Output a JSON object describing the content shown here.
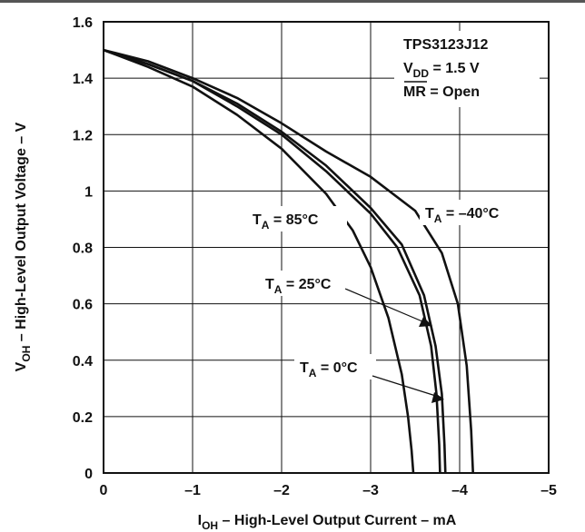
{
  "chart_data": {
    "type": "line",
    "title": "",
    "xlabel": {
      "main": "I",
      "sub": "OH",
      "rest": " – High-Level Output Current – mA"
    },
    "ylabel": {
      "main": "V",
      "sub": "OH",
      "rest": " – High-Level Output Voltage – V"
    },
    "xlim": [
      0,
      -5
    ],
    "ylim": [
      0,
      1.6
    ],
    "grid": true,
    "x_ticks": [
      0,
      -1,
      -2,
      -3,
      -4,
      -5
    ],
    "x_tick_labels": [
      "0",
      "–1",
      "–2",
      "–3",
      "–4",
      "–5"
    ],
    "y_ticks": [
      0,
      0.2,
      0.4,
      0.6,
      0.8,
      1,
      1.2,
      1.4,
      1.6
    ],
    "y_tick_labels": [
      "0",
      "0.2",
      "0.4",
      "0.6",
      "0.8",
      "1",
      "1.2",
      "1.4",
      "1.6"
    ],
    "info_box": {
      "device": "TPS3123J12",
      "vdd_main": "V",
      "vdd_sub": "DD",
      "vdd_rest": " = 1.5 V",
      "mr_main": "MR",
      "mr_rest": " = Open"
    },
    "series": [
      {
        "name": "T_A = 85°C",
        "label_main": "T",
        "label_sub": "A",
        "label_rest": " = 85°C",
        "x": [
          0,
          -0.5,
          -1,
          -1.5,
          -2,
          -2.5,
          -2.8,
          -3.0,
          -3.2,
          -3.35,
          -3.42,
          -3.46,
          -3.48
        ],
        "y": [
          1.5,
          1.44,
          1.37,
          1.27,
          1.15,
          0.99,
          0.86,
          0.73,
          0.55,
          0.35,
          0.2,
          0.08,
          0
        ]
      },
      {
        "name": "T_A = 0°C",
        "label_main": "T",
        "label_sub": "A",
        "label_rest": " = 0°C",
        "x": [
          0,
          -0.5,
          -1,
          -1.5,
          -2,
          -2.5,
          -3.0,
          -3.3,
          -3.55,
          -3.68,
          -3.74,
          -3.77,
          -3.78
        ],
        "y": [
          1.5,
          1.45,
          1.39,
          1.3,
          1.2,
          1.07,
          0.92,
          0.8,
          0.63,
          0.45,
          0.28,
          0.1,
          0
        ]
      },
      {
        "name": "T_A = 25°C",
        "label_main": "T",
        "label_sub": "A",
        "label_rest": " = 25°C",
        "x": [
          0,
          -0.5,
          -1,
          -1.5,
          -2,
          -2.5,
          -3.0,
          -3.35,
          -3.6,
          -3.73,
          -3.8,
          -3.83,
          -3.84
        ],
        "y": [
          1.5,
          1.45,
          1.39,
          1.31,
          1.21,
          1.09,
          0.94,
          0.81,
          0.63,
          0.45,
          0.28,
          0.1,
          0
        ]
      },
      {
        "name": "T_A = -40°C",
        "label_main": "T",
        "label_sub": "A",
        "label_rest": " = –40°C",
        "x": [
          0,
          -0.5,
          -1,
          -1.5,
          -2,
          -2.5,
          -3.0,
          -3.5,
          -3.8,
          -3.98,
          -4.08,
          -4.13,
          -4.15
        ],
        "y": [
          1.5,
          1.46,
          1.4,
          1.33,
          1.24,
          1.14,
          1.05,
          0.93,
          0.78,
          0.6,
          0.38,
          0.15,
          0
        ]
      }
    ]
  }
}
